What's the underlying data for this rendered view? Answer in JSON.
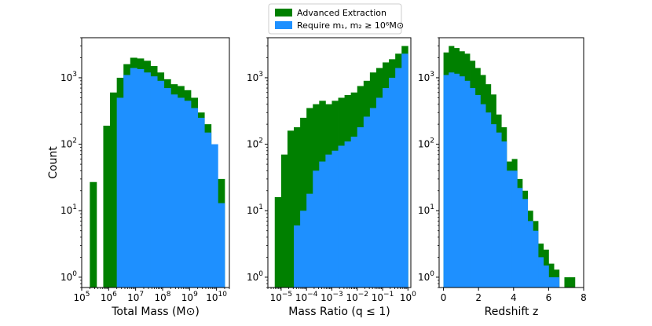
{
  "colors": {
    "advanced": "#008000",
    "require": "#1e90ff"
  },
  "legend": {
    "placement": "top-center",
    "entries": [
      {
        "label": "Advanced Extraction",
        "color": "#008000"
      },
      {
        "label": "Require m₁, m₂ ≥ 10⁶M⊙",
        "color": "#1e90ff"
      }
    ]
  },
  "ylabel": "Count",
  "chart_data": [
    {
      "type": "bar",
      "xscale": "log",
      "yscale": "log",
      "xlabel": "Total Mass (M⊙)",
      "ylabel": "Count",
      "xlim": [
        100000,
        30000000000
      ],
      "ylim": [
        0.7,
        4000
      ],
      "xticks": [
        {
          "value": 100000,
          "base": "10",
          "exp": "5"
        },
        {
          "value": 1000000,
          "base": "10",
          "exp": "6"
        },
        {
          "value": 10000000,
          "base": "10",
          "exp": "7"
        },
        {
          "value": 100000000,
          "base": "10",
          "exp": "8"
        },
        {
          "value": 1000000000,
          "base": "10",
          "exp": "9"
        },
        {
          "value": 10000000000,
          "base": "10",
          "exp": "10"
        }
      ],
      "yticks": [
        {
          "value": 1,
          "base": "10",
          "exp": "0"
        },
        {
          "value": 10,
          "base": "10",
          "exp": "1"
        },
        {
          "value": 100,
          "base": "10",
          "exp": "2"
        },
        {
          "value": 1000,
          "base": "10",
          "exp": "3"
        }
      ],
      "bin_edges": [
        200000,
        355000,
        631000,
        1120000,
        2000000,
        3550000,
        6310000,
        11200000,
        20000000,
        35500000,
        63100000,
        112000000,
        200000000,
        355000000,
        631000000,
        1120000000,
        2000000000,
        3550000000,
        6310000000,
        11200000000,
        20000000000
      ],
      "series": [
        {
          "name": "Advanced Extraction",
          "values": [
            27,
            0,
            190,
            600,
            1000,
            1600,
            2000,
            1950,
            1800,
            1500,
            1200,
            950,
            800,
            750,
            650,
            500,
            300,
            200,
            0,
            30
          ]
        },
        {
          "name": "Require m₁, m₂ ≥ 10⁶M⊙",
          "values": [
            0,
            0,
            0,
            0,
            500,
            1100,
            1400,
            1350,
            1200,
            1050,
            900,
            700,
            560,
            500,
            450,
            350,
            250,
            150,
            100,
            13
          ]
        }
      ]
    },
    {
      "type": "bar",
      "xscale": "log",
      "yscale": "log",
      "xlabel": "Mass Ratio (q ≤ 1)",
      "xlim": [
        3e-06,
        1.3
      ],
      "ylim": [
        0.7,
        4000
      ],
      "xticks": [
        {
          "value": 1e-05,
          "base": "10",
          "exp": "−5"
        },
        {
          "value": 0.0001,
          "base": "10",
          "exp": "−4"
        },
        {
          "value": 0.001,
          "base": "10",
          "exp": "−3"
        },
        {
          "value": 0.01,
          "base": "10",
          "exp": "−2"
        },
        {
          "value": 0.1,
          "base": "10",
          "exp": "−1"
        },
        {
          "value": 1,
          "base": "10",
          "exp": "0"
        }
      ],
      "yticks": [
        {
          "value": 1,
          "base": "10",
          "exp": "0"
        },
        {
          "value": 10,
          "base": "10",
          "exp": "1"
        },
        {
          "value": 100,
          "base": "10",
          "exp": "2"
        },
        {
          "value": 1000,
          "base": "10",
          "exp": "3"
        }
      ],
      "bin_edges": [
        5.6e-06,
        1e-05,
        1.78e-05,
        3.16e-05,
        5.62e-05,
        0.0001,
        0.000178,
        0.000316,
        0.000562,
        0.001,
        0.00178,
        0.00316,
        0.00562,
        0.01,
        0.0178,
        0.0316,
        0.0562,
        0.1,
        0.178,
        0.316,
        0.562,
        1
      ],
      "series": [
        {
          "name": "Advanced Extraction",
          "values": [
            16,
            70,
            160,
            180,
            250,
            350,
            400,
            450,
            400,
            450,
            500,
            550,
            600,
            750,
            900,
            1200,
            1400,
            1700,
            1900,
            2300,
            3000
          ]
        },
        {
          "name": "Require m₁, m₂ ≥ 10⁶M⊙",
          "values": [
            0,
            0,
            0,
            6,
            10,
            18,
            40,
            55,
            70,
            80,
            95,
            110,
            130,
            180,
            260,
            350,
            500,
            700,
            1000,
            1400,
            2300
          ]
        }
      ]
    },
    {
      "type": "bar",
      "xscale": "linear",
      "yscale": "log",
      "xlabel": "Redshift z",
      "xlim": [
        -0.25,
        8
      ],
      "ylim": [
        0.7,
        4000
      ],
      "xticks": [
        {
          "value": 0,
          "label": "0"
        },
        {
          "value": 2,
          "label": "2"
        },
        {
          "value": 4,
          "label": "4"
        },
        {
          "value": 6,
          "label": "6"
        },
        {
          "value": 8,
          "label": "8"
        }
      ],
      "yticks": [
        {
          "value": 1,
          "base": "10",
          "exp": "0"
        },
        {
          "value": 10,
          "base": "10",
          "exp": "1"
        },
        {
          "value": 100,
          "base": "10",
          "exp": "2"
        },
        {
          "value": 1000,
          "base": "10",
          "exp": "3"
        }
      ],
      "bin_edges": [
        0,
        0.3,
        0.6,
        0.9,
        1.2,
        1.5,
        1.8,
        2.1,
        2.4,
        2.7,
        3.0,
        3.3,
        3.6,
        3.9,
        4.2,
        4.5,
        4.8,
        5.1,
        5.4,
        5.7,
        6.0,
        6.3,
        6.6,
        6.9,
        7.2,
        7.5
      ],
      "series": [
        {
          "name": "Advanced Extraction",
          "values": [
            2400,
            3000,
            2800,
            2500,
            2300,
            1800,
            1400,
            1100,
            800,
            560,
            280,
            180,
            55,
            60,
            30,
            20,
            10,
            7,
            3.2,
            2.6,
            1.6,
            1.3,
            0,
            1,
            1
          ]
        },
        {
          "name": "Require m₁, m₂ ≥ 10⁶M⊙",
          "values": [
            1100,
            1200,
            1150,
            1050,
            900,
            700,
            550,
            400,
            300,
            200,
            150,
            110,
            40,
            40,
            22,
            15,
            7,
            5,
            2,
            1.5,
            1,
            1,
            0,
            0,
            0
          ]
        }
      ]
    }
  ]
}
